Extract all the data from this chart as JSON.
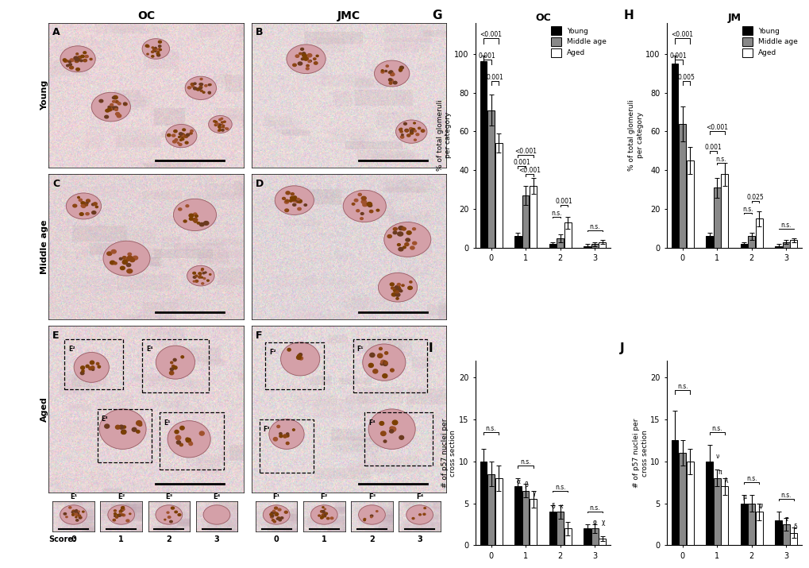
{
  "colors": {
    "young": "#000000",
    "middle_age": "#888888",
    "aged": "#ffffff",
    "bar_edge": "#000000"
  },
  "legend_labels": [
    "Young",
    "Middle age",
    "Aged"
  ],
  "chart_G": {
    "title": "OC",
    "young": [
      96,
      6,
      2,
      1
    ],
    "middle_age": [
      71,
      27,
      5,
      2
    ],
    "aged": [
      54,
      32,
      13,
      3
    ],
    "young_err": [
      3,
      2,
      1,
      1
    ],
    "middle_age_err": [
      8,
      5,
      2,
      1
    ],
    "aged_err": [
      5,
      4,
      3,
      1
    ]
  },
  "chart_H": {
    "title": "JM",
    "young": [
      95,
      6,
      2,
      1
    ],
    "middle_age": [
      64,
      31,
      6,
      3
    ],
    "aged": [
      45,
      38,
      15,
      4
    ],
    "young_err": [
      4,
      2,
      1,
      1
    ],
    "middle_age_err": [
      9,
      5,
      2,
      1
    ],
    "aged_err": [
      7,
      6,
      4,
      1
    ]
  },
  "chart_I": {
    "young": [
      10,
      7,
      4,
      2
    ],
    "middle_age": [
      8.5,
      6.5,
      4,
      2
    ],
    "aged": [
      8,
      5.5,
      2,
      0.8
    ],
    "young_err": [
      1.5,
      1,
      0.8,
      0.5
    ],
    "middle_age_err": [
      1.5,
      0.8,
      0.8,
      0.5
    ],
    "aged_err": [
      1.5,
      1,
      0.8,
      0.3
    ]
  },
  "chart_J": {
    "young": [
      12.5,
      10,
      5,
      3
    ],
    "middle_age": [
      11,
      8,
      5,
      2.5
    ],
    "aged": [
      10,
      7,
      4,
      1.5
    ],
    "young_err": [
      3.5,
      2,
      1,
      1
    ],
    "middle_age_err": [
      1.5,
      1,
      1,
      0.8
    ],
    "aged_err": [
      1.5,
      1,
      1,
      0.6
    ]
  },
  "micro_colors": {
    "A": {
      "bg": "#e8d5d8",
      "tissue": "#c9a8b0",
      "glom": "#8b5c5c"
    },
    "B": {
      "bg": "#e5d8da",
      "tissue": "#c8aab0",
      "glom": "#8a5a5a"
    },
    "C": {
      "bg": "#e2d2d5",
      "tissue": "#c5a5ae",
      "glom": "#8a5858"
    },
    "D": {
      "bg": "#e0d5d8",
      "tissue": "#c3a8b2",
      "glom": "#8b5a5a"
    },
    "E": {
      "bg": "#e5d5d8",
      "tissue": "#c6a8b0",
      "glom": "#8a5858"
    },
    "F": {
      "bg": "#e3d8da",
      "tissue": "#c4abb2",
      "glom": "#8b5b5b"
    }
  }
}
